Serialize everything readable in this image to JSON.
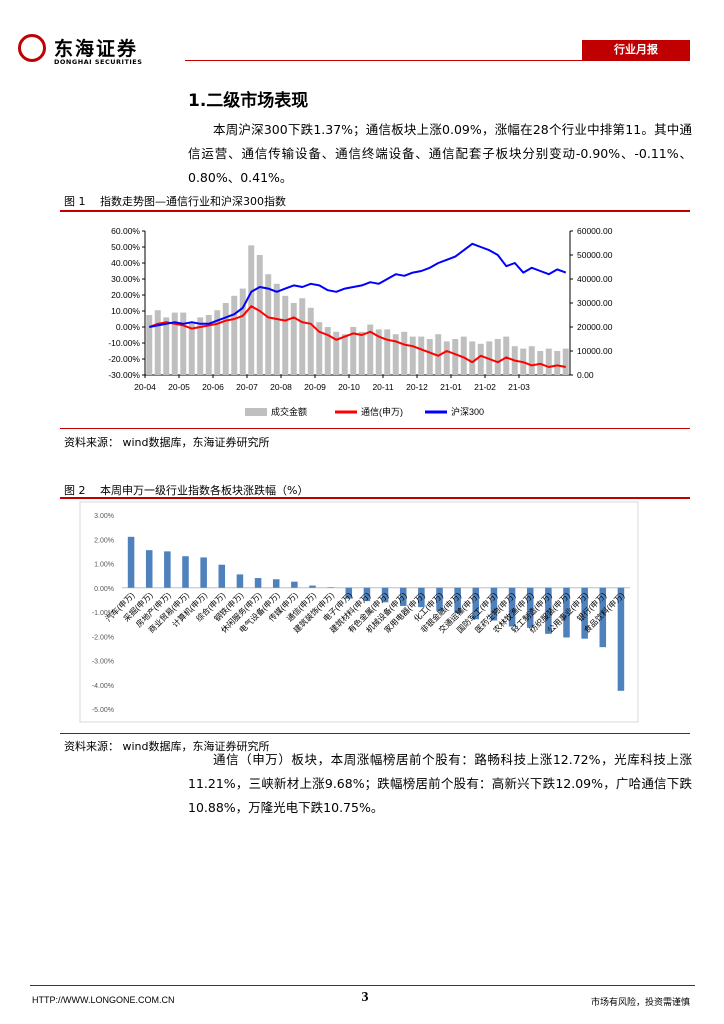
{
  "header": {
    "company": "东海证券",
    "company_en": "DONGHAI SECURITIES",
    "report_type": "行业月报"
  },
  "section_title": "1.二级市场表现",
  "paragraphs": [
    "本周沪深300下跌1.37%；通信板块上涨0.09%，涨幅在28个行业中排第11。其中通信运营、通信传输设备、通信终端设备、通信配套子板块分别变动-0.90%、-0.11%、0.80%、0.41%。",
    "通信（申万）板块，本周涨幅榜居前个股有：路畅科技上涨12.72%，光库科技上涨11.21%，三峡新材上涨9.68%；跌幅榜居前个股有：高新兴下跌12.09%，广哈通信下跌10.88%，万隆光电下跌10.75%。"
  ],
  "figures": [
    {
      "number": "图 1",
      "caption": "指数走势图—通信行业和沪深300指数",
      "source": "资料来源：  wind数据库，东海证券研究所",
      "chart_data": {
        "type": "combo",
        "categories": [
          "20-04",
          null,
          null,
          null,
          "20-05",
          null,
          null,
          null,
          "20-06",
          null,
          null,
          null,
          "20-07",
          null,
          null,
          null,
          "20-08",
          null,
          null,
          null,
          "20-09",
          null,
          null,
          null,
          "20-10",
          null,
          null,
          null,
          "20-11",
          null,
          null,
          null,
          "20-12",
          null,
          null,
          null,
          "21-01",
          null,
          null,
          null,
          "21-02",
          null,
          null,
          null,
          "21-03",
          null,
          null,
          null,
          null,
          null
        ],
        "series": [
          {
            "name": "成交金额",
            "type": "bar",
            "axis": "y2",
            "color": "#bfbfbf",
            "values": [
              25000,
              27000,
              24000,
              26000,
              26000,
              22000,
              24000,
              25000,
              27000,
              30000,
              33000,
              36000,
              54000,
              50000,
              42000,
              38000,
              33000,
              30000,
              32000,
              28000,
              22000,
              20000,
              18000,
              17000,
              20000,
              18000,
              21000,
              19000,
              19000,
              17000,
              18000,
              16000,
              16000,
              15000,
              17000,
              14000,
              15000,
              16000,
              14000,
              13000,
              14000,
              15000,
              16000,
              12000,
              11000,
              12000,
              10000,
              11000,
              10000,
              11000
            ]
          },
          {
            "name": "通信(申万)",
            "type": "line",
            "color": "#ff0000",
            "values": [
              0,
              2,
              3,
              2,
              1,
              -1,
              0,
              1,
              2,
              4,
              5,
              7,
              13,
              10,
              6,
              5,
              4,
              6,
              3,
              2,
              -3,
              -5,
              -8,
              -6,
              -4,
              -5,
              -3,
              -6,
              -8,
              -9,
              -11,
              -12,
              -14,
              -16,
              -18,
              -15,
              -17,
              -19,
              -22,
              -18,
              -20,
              -22,
              -19,
              -21,
              -22,
              -24,
              -23,
              -25,
              -24,
              -25
            ]
          },
          {
            "name": "沪深300",
            "type": "line",
            "color": "#0000ff",
            "values": [
              0,
              1,
              2,
              3,
              2,
              3,
              2,
              2,
              4,
              6,
              8,
              12,
              22,
              25,
              24,
              22,
              24,
              26,
              25,
              27,
              26,
              23,
              22,
              24,
              25,
              26,
              28,
              27,
              30,
              33,
              32,
              34,
              35,
              37,
              40,
              42,
              44,
              48,
              52,
              50,
              48,
              45,
              38,
              40,
              34,
              37,
              35,
              33,
              36,
              34
            ]
          }
        ],
        "ylim": [
          -30,
          60
        ],
        "yticks": [
          {
            "value": -30,
            "label": "-30.00%"
          },
          {
            "value": -20,
            "label": "-20.00%"
          },
          {
            "value": -10,
            "label": "-10.00%"
          },
          {
            "value": 0,
            "label": "0.00%"
          },
          {
            "value": 10,
            "label": "10.00%"
          },
          {
            "value": 20,
            "label": "20.00%"
          },
          {
            "value": 30,
            "label": "30.00%"
          },
          {
            "value": 40,
            "label": "40.00%"
          },
          {
            "value": 50,
            "label": "50.00%"
          },
          {
            "value": 60,
            "label": "60.00%"
          }
        ],
        "y2lim": [
          0,
          60000
        ],
        "y2ticks": [
          {
            "value": 0,
            "label": "0.00"
          },
          {
            "value": 10000,
            "label": "10000.00"
          },
          {
            "value": 20000,
            "label": "20000.00"
          },
          {
            "value": 30000,
            "label": "30000.00"
          },
          {
            "value": 40000,
            "label": "40000.00"
          },
          {
            "value": 50000,
            "label": "50000.00"
          },
          {
            "value": 60000,
            "label": "60000.00"
          }
        ],
        "grid": false,
        "legend": "bottom"
      }
    },
    {
      "number": "图 2",
      "caption": "本周申万一级行业指数各板块涨跌幅（%）",
      "source": "资料来源：  wind数据库，东海证券研究所",
      "chart_data": {
        "type": "bar",
        "categories": [
          "汽车(申万)",
          "采掘(申万)",
          "房地产(申万)",
          "商业贸易(申万)",
          "计算机(申万)",
          "综合(申万)",
          "钢铁(申万)",
          "休闲服务(申万)",
          "电气设备(申万)",
          "传媒(申万)",
          "通信(申万)",
          "建筑装饰(申万)",
          "电子(申万)",
          "建筑材料(申万)",
          "有色金属(申万)",
          "机械设备(申万)",
          "家用电器(申万)",
          "化工(申万)",
          "非银金融(申万)",
          "交通运输(申万)",
          "国防军工(申万)",
          "医药生物(申万)",
          "农林牧渔(申万)",
          "轻工制造(申万)",
          "纺织服装(申万)",
          "公用事业(申万)",
          "银行(申万)",
          "食品饮料(申万)"
        ],
        "values": [
          2.1,
          1.55,
          1.5,
          1.3,
          1.25,
          0.95,
          0.55,
          0.4,
          0.35,
          0.25,
          0.09,
          0.02,
          -0.45,
          -0.55,
          -0.6,
          -0.75,
          -0.8,
          -0.95,
          -1.05,
          -1.3,
          -1.35,
          -1.6,
          -1.65,
          -1.9,
          -2.05,
          -2.1,
          -2.45,
          -4.25
        ],
        "color": "#4f81bd",
        "ylim": [
          -5,
          3
        ],
        "yticks": [
          {
            "value": -5,
            "label": "-5.00%"
          },
          {
            "value": -4,
            "label": "-4.00%"
          },
          {
            "value": -3,
            "label": "-3.00%"
          },
          {
            "value": -2,
            "label": "-2.00%"
          },
          {
            "value": -1,
            "label": "-1.00%"
          },
          {
            "value": 0,
            "label": "0.00%"
          },
          {
            "value": 1,
            "label": "1.00%"
          },
          {
            "value": 2,
            "label": "2.00%"
          },
          {
            "value": 3,
            "label": "3.00%"
          }
        ],
        "grid": false
      }
    }
  ],
  "footer": {
    "url": "HTTP://WWW.LONGONE.COM.CN",
    "page": "3",
    "disclaimer": "市场有风险，投资需谨慎"
  }
}
